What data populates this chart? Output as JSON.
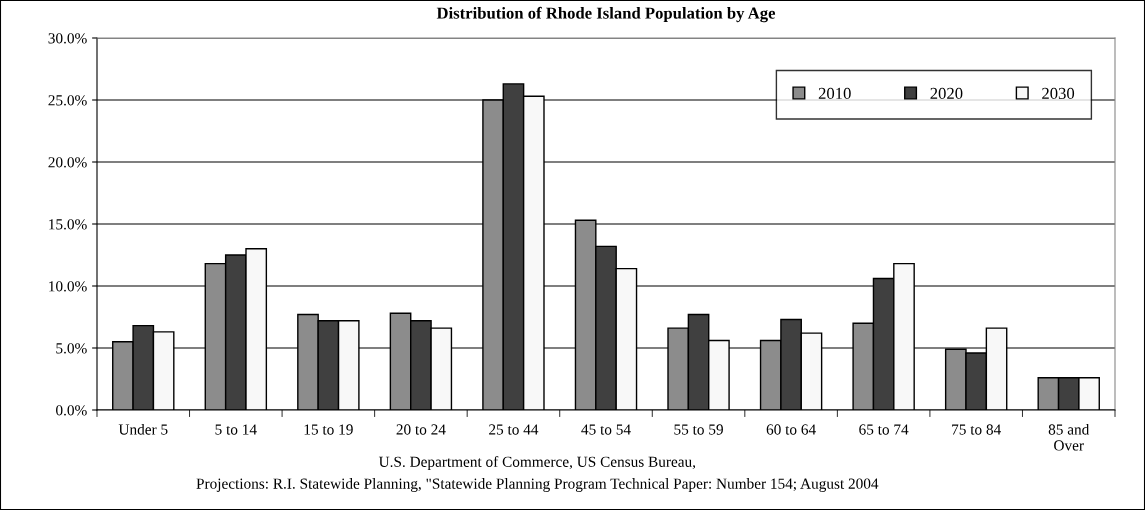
{
  "chart_data": {
    "type": "bar",
    "title": "Distribution of Rhode Island Population by Age",
    "categories": [
      "Under 5",
      "5 to 14",
      "15 to 19",
      "20 to 24",
      "25 to 44",
      "45 to 54",
      "55 to 59",
      "60 to 64",
      "65 to 74",
      "75 to 84",
      "85 and\nOver"
    ],
    "series": [
      {
        "name": "2010",
        "color": "#8c8c8c",
        "values": [
          5.5,
          11.8,
          7.7,
          7.8,
          25.0,
          15.3,
          6.6,
          5.6,
          7.0,
          4.9,
          2.6
        ]
      },
      {
        "name": "2020",
        "color": "#404040",
        "values": [
          6.8,
          12.5,
          7.2,
          7.2,
          26.3,
          13.2,
          7.7,
          7.3,
          10.6,
          4.6,
          2.6
        ]
      },
      {
        "name": "2030",
        "color": "#f8f8f8",
        "values": [
          6.3,
          13.0,
          7.2,
          6.6,
          25.3,
          11.4,
          5.6,
          6.2,
          11.8,
          6.6,
          2.6
        ]
      }
    ],
    "ylim": [
      0,
      30
    ],
    "yticks": [
      {
        "value": 0,
        "label": "0.0%"
      },
      {
        "value": 5,
        "label": "5.0%"
      },
      {
        "value": 10,
        "label": "10.0%"
      },
      {
        "value": 15,
        "label": "15.0%"
      },
      {
        "value": 20,
        "label": "20.0%"
      },
      {
        "value": 25,
        "label": "25.0%"
      },
      {
        "value": 30,
        "label": "30.0%"
      }
    ],
    "grid": "y",
    "legend": "top right",
    "annotations": [
      "U.S. Department of Commerce, US Census Bureau,",
      "Projections: R.I. Statewide Planning, \"Statewide Planning Program Technical Paper: Number 154; August 2004"
    ]
  }
}
